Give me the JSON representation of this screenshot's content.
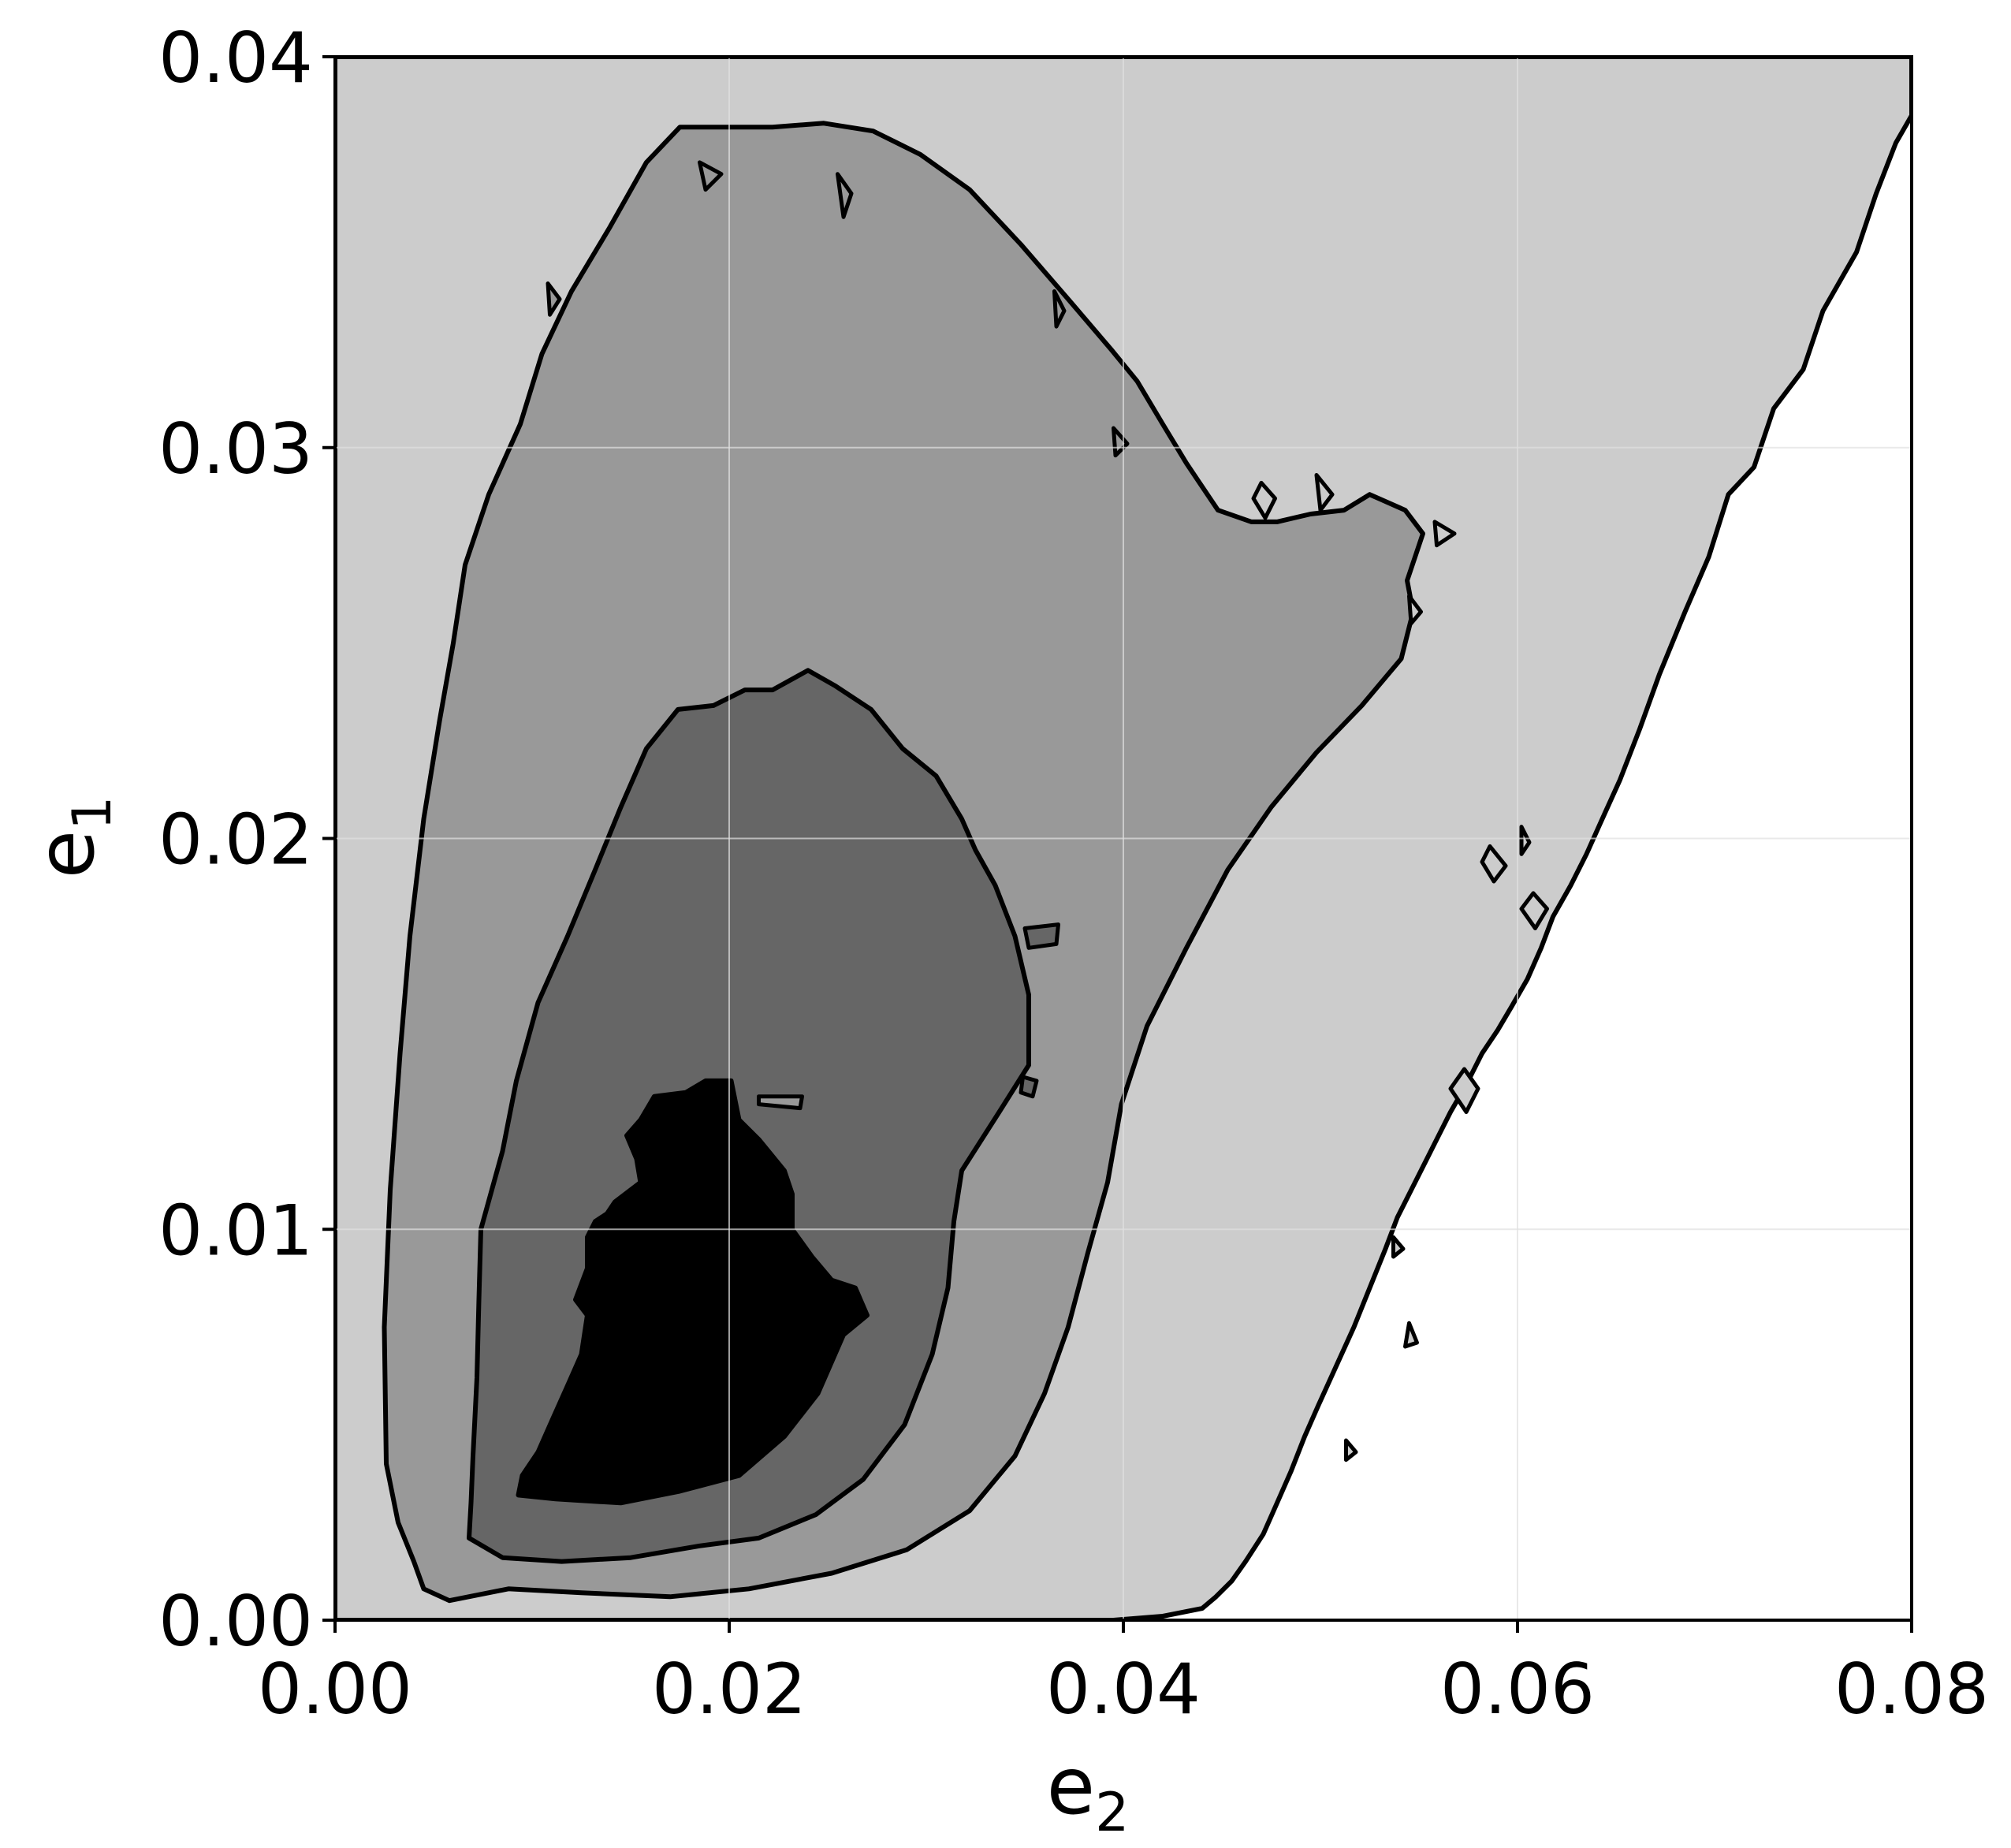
{
  "chart_data": {
    "type": "contour",
    "title": "",
    "xlabel": "e",
    "xlabel_subscript": "2",
    "ylabel": "e",
    "ylabel_subscript": "1",
    "xlim": [
      0.0,
      0.08
    ],
    "ylim": [
      0.0,
      0.04
    ],
    "x_ticks": [
      0.0,
      0.02,
      0.04,
      0.06,
      0.08
    ],
    "x_tick_labels": [
      "0.00",
      "0.02",
      "0.04",
      "0.06",
      "0.08"
    ],
    "y_ticks": [
      0.0,
      0.01,
      0.02,
      0.03,
      0.04
    ],
    "y_tick_labels": [
      "0.00",
      "0.01",
      "0.02",
      "0.03",
      "0.04"
    ],
    "grid": true,
    "legend": "none",
    "colors": {
      "background": "#ffffff",
      "level_1": "#cccccc",
      "level_2": "#999999",
      "level_3": "#666666",
      "level_4": "#000000",
      "contour_line": "#000000",
      "grid": "#e0e0e0"
    },
    "regions": [
      {
        "level": 1,
        "fill": "#cccccc",
        "points": [
          [
            0.0,
            0.0
          ],
          [
            0.0,
            0.04
          ],
          [
            0.08,
            0.04
          ],
          [
            0.08,
            0.0385
          ],
          [
            0.0792,
            0.0378
          ],
          [
            0.0782,
            0.0365
          ],
          [
            0.0772,
            0.035
          ],
          [
            0.0755,
            0.0335
          ],
          [
            0.0745,
            0.032
          ],
          [
            0.073,
            0.031
          ],
          [
            0.072,
            0.0295
          ],
          [
            0.0707,
            0.0288
          ],
          [
            0.0697,
            0.0272
          ],
          [
            0.0685,
            0.0258
          ],
          [
            0.0672,
            0.0242
          ],
          [
            0.0662,
            0.0228
          ],
          [
            0.0652,
            0.0215
          ],
          [
            0.0643,
            0.0205
          ],
          [
            0.0635,
            0.0196
          ],
          [
            0.0627,
            0.0188
          ],
          [
            0.0618,
            0.018
          ],
          [
            0.0612,
            0.0172
          ],
          [
            0.0605,
            0.0164
          ],
          [
            0.0597,
            0.0157
          ],
          [
            0.059,
            0.0151
          ],
          [
            0.0582,
            0.0145
          ],
          [
            0.0574,
            0.0137
          ],
          [
            0.0566,
            0.013
          ],
          [
            0.0559,
            0.0123
          ],
          [
            0.0553,
            0.0117
          ],
          [
            0.0546,
            0.011
          ],
          [
            0.0539,
            0.0103
          ],
          [
            0.0533,
            0.0095
          ],
          [
            0.0525,
            0.0085
          ],
          [
            0.0517,
            0.0075
          ],
          [
            0.0508,
            0.0065
          ],
          [
            0.0499,
            0.0055
          ],
          [
            0.0492,
            0.0047
          ],
          [
            0.0485,
            0.0038
          ],
          [
            0.0478,
            0.003
          ],
          [
            0.0471,
            0.0022
          ],
          [
            0.0462,
            0.0015
          ],
          [
            0.0455,
            0.001
          ],
          [
            0.0447,
            0.0006
          ],
          [
            0.044,
            0.0003
          ],
          [
            0.042,
            0.0001
          ],
          [
            0.0395,
            0.0
          ]
        ]
      },
      {
        "level": 2,
        "fill": "#999999",
        "points": [
          [
            0.0045,
            0.0008
          ],
          [
            0.0058,
            0.0005
          ],
          [
            0.0088,
            0.0008
          ],
          [
            0.0125,
            0.0007
          ],
          [
            0.017,
            0.0006
          ],
          [
            0.021,
            0.0008
          ],
          [
            0.0252,
            0.0012
          ],
          [
            0.029,
            0.0018
          ],
          [
            0.0322,
            0.0028
          ],
          [
            0.0345,
            0.0042
          ],
          [
            0.036,
            0.0058
          ],
          [
            0.0372,
            0.0075
          ],
          [
            0.0382,
            0.0094
          ],
          [
            0.0392,
            0.0112
          ],
          [
            0.0399,
            0.0132
          ],
          [
            0.0412,
            0.0152
          ],
          [
            0.0432,
            0.0172
          ],
          [
            0.0453,
            0.0192
          ],
          [
            0.0475,
            0.0208
          ],
          [
            0.0498,
            0.0222
          ],
          [
            0.0521,
            0.0234
          ],
          [
            0.0541,
            0.0246
          ],
          [
            0.0547,
            0.0258
          ],
          [
            0.0544,
            0.0266
          ],
          [
            0.0552,
            0.0278
          ],
          [
            0.0543,
            0.0284
          ],
          [
            0.0525,
            0.0288
          ],
          [
            0.0512,
            0.0284
          ],
          [
            0.0495,
            0.0283
          ],
          [
            0.0478,
            0.0281
          ],
          [
            0.0465,
            0.0281
          ],
          [
            0.0448,
            0.0284
          ],
          [
            0.0432,
            0.0296
          ],
          [
            0.042,
            0.0306
          ],
          [
            0.0407,
            0.0317
          ],
          [
            0.0394,
            0.0325
          ],
          [
            0.0372,
            0.0338
          ],
          [
            0.0348,
            0.0352
          ],
          [
            0.0322,
            0.0366
          ],
          [
            0.0297,
            0.0375
          ],
          [
            0.0273,
            0.0381
          ],
          [
            0.0248,
            0.0383
          ],
          [
            0.0222,
            0.0382
          ],
          [
            0.0198,
            0.0382
          ],
          [
            0.0175,
            0.0382
          ],
          [
            0.0158,
            0.0373
          ],
          [
            0.0139,
            0.0356
          ],
          [
            0.012,
            0.034
          ],
          [
            0.0105,
            0.0324
          ],
          [
            0.0094,
            0.0306
          ],
          [
            0.0078,
            0.0288
          ],
          [
            0.0066,
            0.027
          ],
          [
            0.006,
            0.025
          ],
          [
            0.0053,
            0.023
          ],
          [
            0.0045,
            0.0205
          ],
          [
            0.0038,
            0.0175
          ],
          [
            0.0033,
            0.0145
          ],
          [
            0.0028,
            0.011
          ],
          [
            0.0025,
            0.0075
          ],
          [
            0.0026,
            0.004
          ],
          [
            0.0032,
            0.0025
          ],
          [
            0.004,
            0.0015
          ]
        ]
      },
      {
        "level": 3,
        "fill": "#666666",
        "points": [
          [
            0.0068,
            0.0021
          ],
          [
            0.0085,
            0.0016
          ],
          [
            0.0115,
            0.0015
          ],
          [
            0.015,
            0.0016
          ],
          [
            0.0185,
            0.0019
          ],
          [
            0.0215,
            0.0021
          ],
          [
            0.0244,
            0.0027
          ],
          [
            0.0268,
            0.0036
          ],
          [
            0.0289,
            0.005
          ],
          [
            0.0303,
            0.0068
          ],
          [
            0.0311,
            0.0085
          ],
          [
            0.0314,
            0.0102
          ],
          [
            0.0318,
            0.0115
          ],
          [
            0.0337,
            0.013
          ],
          [
            0.0352,
            0.0142
          ],
          [
            0.0352,
            0.016
          ],
          [
            0.0345,
            0.0175
          ],
          [
            0.0335,
            0.0188
          ],
          [
            0.0325,
            0.0197
          ],
          [
            0.0318,
            0.0205
          ],
          [
            0.0305,
            0.0216
          ],
          [
            0.0288,
            0.0223
          ],
          [
            0.0272,
            0.0233
          ],
          [
            0.0254,
            0.0239
          ],
          [
            0.024,
            0.0243
          ],
          [
            0.0222,
            0.0238
          ],
          [
            0.0208,
            0.0238
          ],
          [
            0.0192,
            0.0234
          ],
          [
            0.0174,
            0.0233
          ],
          [
            0.0158,
            0.0223
          ],
          [
            0.0145,
            0.0208
          ],
          [
            0.0132,
            0.0192
          ],
          [
            0.0118,
            0.0175
          ],
          [
            0.0103,
            0.0158
          ],
          [
            0.0092,
            0.0138
          ],
          [
            0.0085,
            0.012
          ],
          [
            0.0074,
            0.01
          ],
          [
            0.0073,
            0.0082
          ],
          [
            0.0072,
            0.0062
          ],
          [
            0.007,
            0.0042
          ],
          [
            0.0069,
            0.003
          ]
        ]
      },
      {
        "level": 4,
        "fill": "#000000",
        "points": [
          [
            0.0093,
            0.0032
          ],
          [
            0.0112,
            0.0031
          ],
          [
            0.0145,
            0.003
          ],
          [
            0.0175,
            0.0033
          ],
          [
            0.0205,
            0.0037
          ],
          [
            0.0228,
            0.0047
          ],
          [
            0.0245,
            0.0058
          ],
          [
            0.0258,
            0.0073
          ],
          [
            0.027,
            0.0078
          ],
          [
            0.0264,
            0.0085
          ],
          [
            0.0252,
            0.0087
          ],
          [
            0.0242,
            0.0093
          ],
          [
            0.0232,
            0.01
          ],
          [
            0.0232,
            0.0109
          ],
          [
            0.0228,
            0.0115
          ],
          [
            0.0215,
            0.0123
          ],
          [
            0.0205,
            0.0128
          ],
          [
            0.0201,
            0.0138
          ],
          [
            0.0188,
            0.0138
          ],
          [
            0.0178,
            0.0135
          ],
          [
            0.0162,
            0.0134
          ],
          [
            0.0155,
            0.0128
          ],
          [
            0.0148,
            0.0124
          ],
          [
            0.0153,
            0.0118
          ],
          [
            0.0155,
            0.0112
          ],
          [
            0.0142,
            0.0107
          ],
          [
            0.0138,
            0.0104
          ],
          [
            0.0132,
            0.0102
          ],
          [
            0.0128,
            0.0098
          ],
          [
            0.0128,
            0.009
          ],
          [
            0.0122,
            0.0082
          ],
          [
            0.0128,
            0.0078
          ],
          [
            0.0125,
            0.0068
          ],
          [
            0.0118,
            0.006
          ],
          [
            0.011,
            0.0051
          ],
          [
            0.0103,
            0.0043
          ],
          [
            0.0095,
            0.0037
          ]
        ]
      }
    ],
    "islands": [
      {
        "level": 2,
        "points": [
          [
            0.0185,
            0.0373
          ],
          [
            0.0196,
            0.037
          ],
          [
            0.0188,
            0.0366
          ]
        ]
      },
      {
        "level": 2,
        "points": [
          [
            0.0255,
            0.037
          ],
          [
            0.0262,
            0.0365
          ],
          [
            0.0258,
            0.0359
          ]
        ]
      },
      {
        "level": 2,
        "points": [
          [
            0.0365,
            0.034
          ],
          [
            0.037,
            0.0335
          ],
          [
            0.0366,
            0.0331
          ]
        ]
      },
      {
        "level": 2,
        "points": [
          [
            0.0395,
            0.0305
          ],
          [
            0.0402,
            0.0301
          ],
          [
            0.0396,
            0.0298
          ]
        ]
      },
      {
        "level": 1,
        "points": [
          [
            0.047,
            0.0291
          ],
          [
            0.0477,
            0.0287
          ],
          [
            0.0472,
            0.0282
          ],
          [
            0.0466,
            0.0287
          ]
        ]
      },
      {
        "level": 1,
        "points": [
          [
            0.0498,
            0.0293
          ],
          [
            0.0506,
            0.0288
          ],
          [
            0.05,
            0.0284
          ]
        ]
      },
      {
        "level": 1,
        "points": [
          [
            0.0558,
            0.0281
          ],
          [
            0.0568,
            0.0278
          ],
          [
            0.0559,
            0.0275
          ]
        ]
      },
      {
        "level": 1,
        "points": [
          [
            0.0602,
            0.0203
          ],
          [
            0.0606,
            0.0199
          ],
          [
            0.0602,
            0.0196
          ]
        ]
      },
      {
        "level": 1,
        "points": [
          [
            0.0586,
            0.0198
          ],
          [
            0.0594,
            0.0193
          ],
          [
            0.0588,
            0.0189
          ],
          [
            0.0582,
            0.0194
          ]
        ]
      },
      {
        "level": 1,
        "points": [
          [
            0.0608,
            0.0186
          ],
          [
            0.0615,
            0.0182
          ],
          [
            0.0609,
            0.0177
          ],
          [
            0.0602,
            0.0182
          ]
        ]
      },
      {
        "level": 1,
        "points": [
          [
            0.0573,
            0.0141
          ],
          [
            0.058,
            0.0136
          ],
          [
            0.0574,
            0.013
          ],
          [
            0.0566,
            0.0136
          ]
        ]
      },
      {
        "level": 3,
        "points": [
          [
            0.035,
            0.0177
          ],
          [
            0.0367,
            0.0178
          ],
          [
            0.0366,
            0.0173
          ],
          [
            0.0352,
            0.0172
          ]
        ]
      },
      {
        "level": 3,
        "points": [
          [
            0.0349,
            0.0139
          ],
          [
            0.0356,
            0.0138
          ],
          [
            0.0354,
            0.0134
          ],
          [
            0.0348,
            0.0135
          ]
        ]
      },
      {
        "level": 2,
        "points": [
          [
            0.0215,
            0.0134
          ],
          [
            0.0237,
            0.0134
          ],
          [
            0.0236,
            0.0131
          ],
          [
            0.0215,
            0.0132
          ]
        ]
      },
      {
        "level": 2,
        "points": [
          [
            0.0108,
            0.0342
          ],
          [
            0.0114,
            0.0338
          ],
          [
            0.0109,
            0.0334
          ]
        ]
      },
      {
        "level": 1,
        "points": [
          [
            0.0545,
            0.0076
          ],
          [
            0.0549,
            0.0071
          ],
          [
            0.0543,
            0.007
          ]
        ]
      },
      {
        "level": 1,
        "points": [
          [
            0.0513,
            0.0046
          ],
          [
            0.0518,
            0.0043
          ],
          [
            0.0513,
            0.0041
          ]
        ]
      },
      {
        "level": 1,
        "points": [
          [
            0.0537,
            0.0098
          ],
          [
            0.0542,
            0.0095
          ],
          [
            0.0537,
            0.0093
          ]
        ]
      },
      {
        "level": 1,
        "points": [
          [
            0.0545,
            0.0262
          ],
          [
            0.0551,
            0.0258
          ],
          [
            0.0546,
            0.0255
          ]
        ]
      }
    ]
  }
}
